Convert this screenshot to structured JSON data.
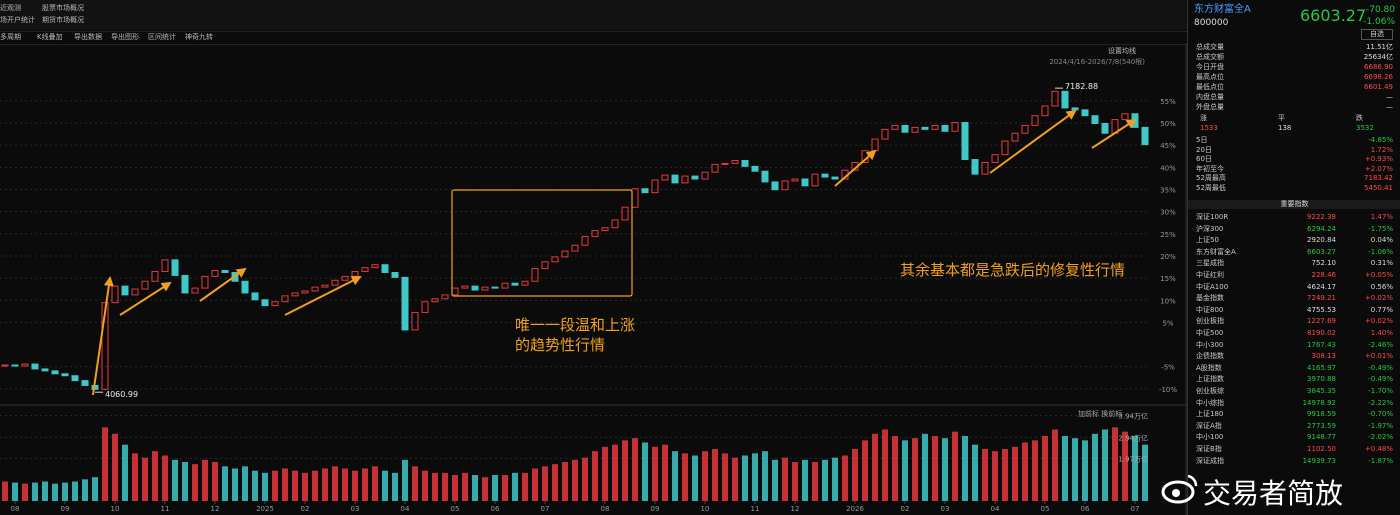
{
  "tabs": [
    [
      "近观测",
      "股票市场概况"
    ],
    [
      "场开户统计",
      "期货市场概况"
    ]
  ],
  "toolbar": [
    "多周期",
    "K线叠加",
    "导出数据",
    "导出图形",
    "区间统计",
    "神奇九转"
  ],
  "chart_data": {
    "type": "candlestick",
    "ma_button": "设置均线",
    "range_label": "2024/4/16-2026/7/8(540根)",
    "close": [
      4340,
      4330,
      4350,
      4300,
      4280,
      4250,
      4230,
      4180,
      4130,
      4090,
      4980,
      5150,
      5060,
      5120,
      5200,
      5300,
      5420,
      5260,
      5080,
      5130,
      5250,
      5310,
      5290,
      5200,
      5080,
      5010,
      4950,
      4990,
      5050,
      5080,
      5100,
      5140,
      5160,
      5210,
      5250,
      5300,
      5340,
      5370,
      5290,
      5240,
      4700,
      4880,
      4990,
      5020,
      5060,
      5130,
      5150,
      5110,
      5140,
      5130,
      5180,
      5160,
      5200,
      5330,
      5400,
      5450,
      5510,
      5570,
      5660,
      5720,
      5750,
      5830,
      5960,
      6150,
      6110,
      6240,
      6290,
      6210,
      6280,
      6250,
      6320,
      6400,
      6410,
      6440,
      6380,
      6330,
      6220,
      6140,
      6230,
      6250,
      6180,
      6300,
      6270,
      6250,
      6340,
      6420,
      6540,
      6660,
      6760,
      6800,
      6730,
      6780,
      6760,
      6800,
      6740,
      6830,
      6450,
      6300,
      6420,
      6500,
      6640,
      6720,
      6800,
      6900,
      7000,
      7150,
      6980,
      6960,
      6900,
      6820,
      6720,
      6860,
      6920,
      6780,
      6603.27
    ],
    "up_color": "#e8383d",
    "down_color": "#3fc8c8",
    "xlim": [
      -0.5,
      114.5
    ],
    "xticks": [
      {
        "value": 1,
        "label": "08"
      },
      {
        "value": 6,
        "label": "09"
      },
      {
        "value": 11,
        "label": "10"
      },
      {
        "value": 16,
        "label": "11"
      },
      {
        "value": 21,
        "label": "12"
      },
      {
        "value": 26,
        "label": "2025"
      },
      {
        "value": 30,
        "label": "02"
      },
      {
        "value": 35,
        "label": "03"
      },
      {
        "value": 40,
        "label": "04"
      },
      {
        "value": 45,
        "label": "05"
      },
      {
        "value": 49,
        "label": "06"
      },
      {
        "value": 54,
        "label": "07"
      },
      {
        "value": 60,
        "label": "08"
      },
      {
        "value": 65,
        "label": "09"
      },
      {
        "value": 70,
        "label": "10"
      },
      {
        "value": 75,
        "label": "11"
      },
      {
        "value": 79,
        "label": "12"
      },
      {
        "value": 85,
        "label": "2026"
      },
      {
        "value": 90,
        "label": "02"
      },
      {
        "value": 94,
        "label": "03"
      },
      {
        "value": 99,
        "label": "04"
      },
      {
        "value": 104,
        "label": "05"
      },
      {
        "value": 108,
        "label": "06"
      },
      {
        "value": 113,
        "label": "07"
      }
    ],
    "ylim": [
      3950,
      7400
    ],
    "yticks": [
      {
        "value": 7052.5,
        "label": "55%"
      },
      {
        "value": 6825,
        "label": "50%"
      },
      {
        "value": 6597.5,
        "label": "45%"
      },
      {
        "value": 6370,
        "label": "40%"
      },
      {
        "value": 6142.5,
        "label": "35%"
      },
      {
        "value": 5915,
        "label": "30%"
      },
      {
        "value": 5687.5,
        "label": "25%"
      },
      {
        "value": 5460,
        "label": "20%"
      },
      {
        "value": 5232.5,
        "label": "15%"
      },
      {
        "value": 5005,
        "label": "10%"
      },
      {
        "value": 4777.5,
        "label": "5%"
      },
      {
        "value": 4322.5,
        "label": "-5%"
      },
      {
        "value": 4095,
        "label": "-10%"
      }
    ],
    "grid": true,
    "high": {
      "x": 105,
      "value": 7182.88
    },
    "low": {
      "x": 9,
      "value": 4060.99
    },
    "notes": [
      "唯一一段温和上涨",
      "的趋势性行情",
      "其余基本都是急跌后的修复性行情"
    ],
    "volume": {
      "label": "加前标 换前标",
      "ylim": [
        0,
        4.2
      ],
      "yticks": [
        {
          "value": 3.94,
          "label": "3.94万亿"
        },
        {
          "value": 2.94,
          "label": "2.94万亿"
        },
        {
          "value": 1.97,
          "label": "1.97万亿"
        }
      ],
      "values": [
        0.9,
        0.85,
        0.8,
        0.85,
        0.9,
        0.8,
        0.85,
        0.9,
        1.0,
        1.1,
        3.4,
        3.1,
        2.6,
        2.2,
        2.0,
        2.3,
        2.1,
        1.9,
        1.8,
        1.7,
        1.9,
        1.8,
        1.6,
        1.5,
        1.6,
        1.4,
        1.3,
        1.4,
        1.5,
        1.4,
        1.3,
        1.4,
        1.5,
        1.6,
        1.5,
        1.4,
        1.5,
        1.6,
        1.4,
        1.3,
        1.9,
        1.6,
        1.4,
        1.3,
        1.3,
        1.2,
        1.3,
        1.2,
        1.1,
        1.2,
        1.2,
        1.3,
        1.3,
        1.5,
        1.6,
        1.7,
        1.8,
        1.9,
        2.0,
        2.3,
        2.5,
        2.6,
        2.8,
        2.9,
        2.7,
        2.5,
        2.6,
        2.3,
        2.2,
        2.1,
        2.3,
        2.4,
        2.2,
        2.0,
        2.1,
        2.2,
        2.3,
        1.9,
        2.0,
        1.8,
        1.9,
        1.8,
        1.9,
        2.0,
        2.1,
        2.4,
        2.8,
        3.1,
        3.3,
        3.0,
        2.8,
        2.9,
        3.1,
        3.0,
        2.9,
        3.2,
        3.0,
        2.6,
        2.4,
        2.3,
        2.4,
        2.5,
        2.7,
        2.8,
        3.0,
        3.3,
        3.0,
        2.9,
        2.8,
        3.1,
        3.3,
        3.4,
        3.2,
        3.0,
        2.6
      ]
    }
  },
  "quote": {
    "name": "东方财富全A",
    "code": "800000",
    "price": "6603.27",
    "change": "-70.80",
    "pct": "-1.06%",
    "button": "自选",
    "stats": [
      [
        "总成交量",
        "11.51亿"
      ],
      [
        "总成交额",
        "25634亿"
      ],
      [
        "今日开盘",
        "6686.90"
      ],
      [
        "最高点位",
        "6698.26"
      ],
      [
        "最低点位",
        "6601.49"
      ],
      [
        "内盘总量",
        "—"
      ],
      [
        "外盘总量",
        "—"
      ]
    ],
    "breadth": {
      "labels": [
        "涨",
        "平",
        "跌"
      ],
      "values": [
        "1533",
        "138",
        "3532"
      ]
    },
    "periods": [
      [
        "5日",
        "-4.85%"
      ],
      [
        "20日",
        "1.72%"
      ],
      [
        "60日",
        "+0.93%"
      ],
      [
        "年初至今",
        "+2.07%"
      ],
      [
        "52周最高",
        "7183.42"
      ],
      [
        "52周最低",
        "5450.41"
      ]
    ],
    "section": "重要指数",
    "indices": [
      [
        "深证100R",
        "9222.38",
        "1.47%"
      ],
      [
        "沪深300",
        "6294.24",
        "-1.75%"
      ],
      [
        "上证50",
        "2920.84",
        "0.04%"
      ],
      [
        "东方财富全A",
        "6603.27",
        "-1.06%"
      ],
      [
        "三星成指",
        "752.10",
        "0.31%"
      ],
      [
        "中证红利",
        "228.46",
        "+0.05%"
      ],
      [
        "中证A100",
        "4624.17",
        "0.56%"
      ],
      [
        "基金指数",
        "7249.21",
        "+0.02%"
      ],
      [
        "中证800",
        "4755.53",
        "0.77%"
      ],
      [
        "创业板指",
        "1227.69",
        "+0.02%"
      ],
      [
        "中证500",
        "8190.02",
        "1.40%"
      ],
      [
        "中小300",
        "1767.43",
        "-2.46%"
      ],
      [
        "企债指数",
        "308.13",
        "+0.01%"
      ],
      [
        "A股指数",
        "4165.97",
        "-0.49%"
      ],
      [
        "上证指数",
        "3970.88",
        "-0.49%"
      ],
      [
        "创业板综",
        "3845.35",
        "-1.70%"
      ],
      [
        "中小综指",
        "14978.92",
        "-2.22%"
      ],
      [
        "上证180",
        "9918.59",
        "-0.70%"
      ],
      [
        "深证A指",
        "2773.59",
        "-1.97%"
      ],
      [
        "中小100",
        "9148.77",
        "-2.02%"
      ],
      [
        "深证B指",
        "1102.50",
        "+0.48%"
      ],
      [
        "深证成指",
        "14939.73",
        "-1.87%"
      ]
    ]
  },
  "watermark": "交易者简放"
}
